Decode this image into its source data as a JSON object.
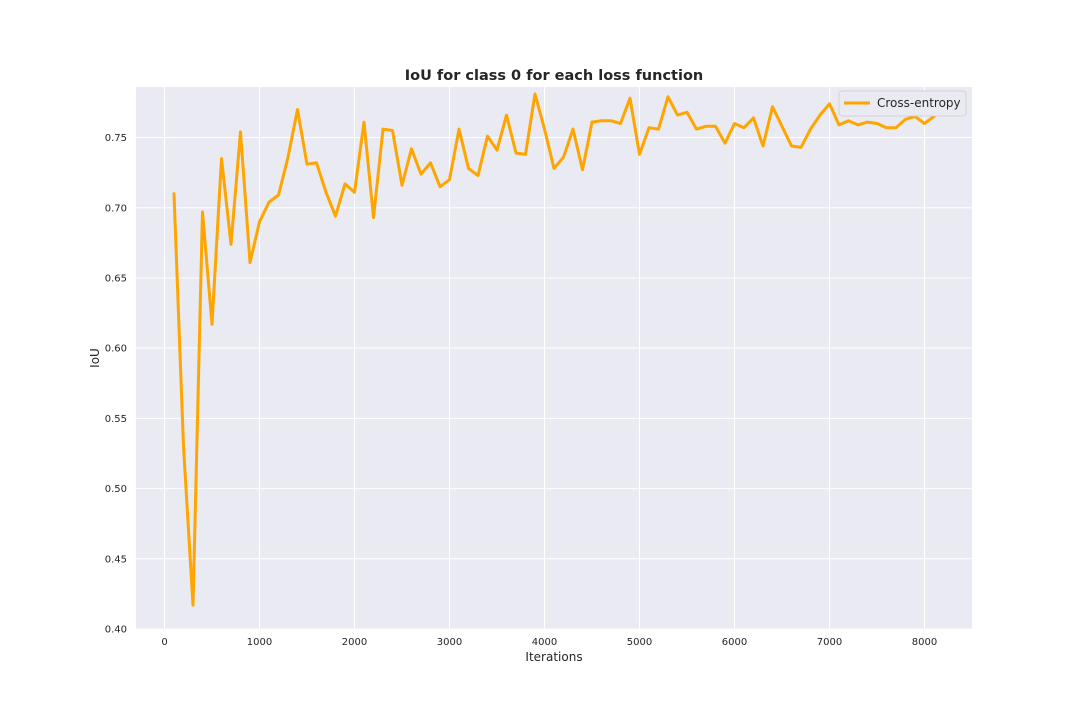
{
  "chart_data": {
    "type": "line",
    "title": "IoU for class 0 for each loss function",
    "xlabel": "Iterations",
    "ylabel": "IoU",
    "xlim": [
      -300,
      8500
    ],
    "ylim": [
      0.4,
      0.786
    ],
    "xticks": [
      0,
      1000,
      2000,
      3000,
      4000,
      5000,
      6000,
      7000,
      8000
    ],
    "yticks": [
      0.4,
      0.45,
      0.5,
      0.55,
      0.6,
      0.65,
      0.7,
      0.75
    ],
    "grid": true,
    "legend_position": "top-right",
    "colors": {
      "background": "#eaeaf2",
      "grid": "#ffffff",
      "series": "#ffa500"
    },
    "series": [
      {
        "name": "Cross-entropy",
        "x": [
          100,
          200,
          300,
          400,
          500,
          600,
          700,
          800,
          900,
          1000,
          1100,
          1200,
          1300,
          1400,
          1500,
          1600,
          1700,
          1800,
          1900,
          2000,
          2100,
          2200,
          2300,
          2400,
          2500,
          2600,
          2700,
          2800,
          2900,
          3000,
          3100,
          3200,
          3300,
          3400,
          3500,
          3600,
          3700,
          3800,
          3900,
          4000,
          4100,
          4200,
          4300,
          4400,
          4500,
          4600,
          4700,
          4800,
          4900,
          5000,
          5100,
          5200,
          5300,
          5400,
          5500,
          5600,
          5700,
          5800,
          5900,
          6000,
          6100,
          6200,
          6300,
          6400,
          6500,
          6600,
          6700,
          6800,
          6900,
          7000,
          7100,
          7200,
          7300,
          7400,
          7500,
          7600,
          7700,
          7800,
          7900,
          8000,
          8100
        ],
        "values": [
          0.71,
          0.53,
          0.417,
          0.697,
          0.617,
          0.735,
          0.674,
          0.754,
          0.661,
          0.69,
          0.704,
          0.709,
          0.736,
          0.77,
          0.731,
          0.732,
          0.711,
          0.694,
          0.717,
          0.711,
          0.761,
          0.693,
          0.756,
          0.755,
          0.716,
          0.742,
          0.724,
          0.732,
          0.715,
          0.72,
          0.756,
          0.728,
          0.723,
          0.751,
          0.741,
          0.766,
          0.739,
          0.738,
          0.781,
          0.756,
          0.728,
          0.736,
          0.756,
          0.727,
          0.761,
          0.762,
          0.762,
          0.76,
          0.778,
          0.738,
          0.757,
          0.756,
          0.779,
          0.766,
          0.768,
          0.756,
          0.758,
          0.758,
          0.746,
          0.76,
          0.757,
          0.764,
          0.744,
          0.772,
          0.758,
          0.744,
          0.743,
          0.756,
          0.766,
          0.774,
          0.759,
          0.762,
          0.759,
          0.761,
          0.76,
          0.757,
          0.757,
          0.763,
          0.765,
          0.76,
          0.765
        ]
      }
    ]
  }
}
